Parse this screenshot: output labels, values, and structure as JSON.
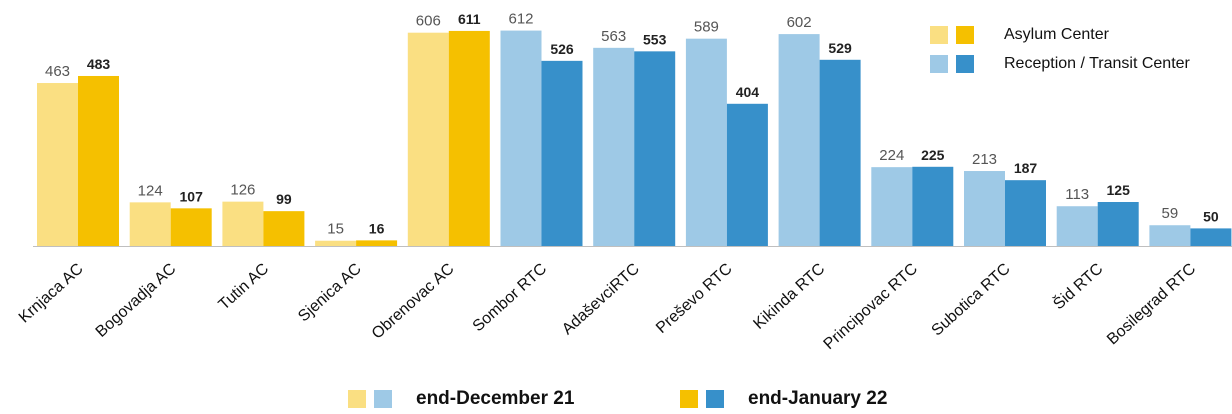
{
  "chart_data": {
    "type": "bar",
    "categories": [
      "Krnjaca AC",
      "Bogovadja AC",
      "Tutin AC",
      "Sjenica AC",
      "Obrenovac AC",
      "Sombor RTC",
      "AdaševciRTC",
      "Preševo RTC",
      "Kikinda RTC",
      "Principovac RTC",
      "Subotica RTC",
      "Šid RTC",
      "Bosilegrad RTC"
    ],
    "center_type": [
      "AC",
      "AC",
      "AC",
      "AC",
      "AC",
      "RTC",
      "RTC",
      "RTC",
      "RTC",
      "RTC",
      "RTC",
      "RTC",
      "RTC"
    ],
    "series": [
      {
        "name": "end-December 21",
        "values": [
          463,
          124,
          126,
          15,
          606,
          612,
          563,
          589,
          602,
          224,
          213,
          113,
          59
        ]
      },
      {
        "name": "end-January 22",
        "values": [
          483,
          107,
          99,
          16,
          611,
          526,
          553,
          404,
          529,
          225,
          187,
          125,
          50
        ]
      }
    ],
    "ylim": [
      0,
      620
    ],
    "grid": false,
    "colors": {
      "AC": {
        "december": "#fadf82",
        "january": "#f5c000"
      },
      "RTC": {
        "december": "#9ec9e6",
        "january": "#3790ca"
      }
    }
  },
  "legend_top": {
    "items": [
      {
        "label": "Asylum Center",
        "colors": [
          "#fadf82",
          "#f5c000"
        ]
      },
      {
        "label": "Reception / Transit Center",
        "colors": [
          "#9ec9e6",
          "#3790ca"
        ]
      }
    ]
  },
  "legend_bottom": {
    "items": [
      {
        "label": "end-December 21",
        "colors": [
          "#fadf82",
          "#9ec9e6"
        ]
      },
      {
        "label": "end-January 22",
        "colors": [
          "#f5c000",
          "#3790ca"
        ]
      }
    ]
  }
}
